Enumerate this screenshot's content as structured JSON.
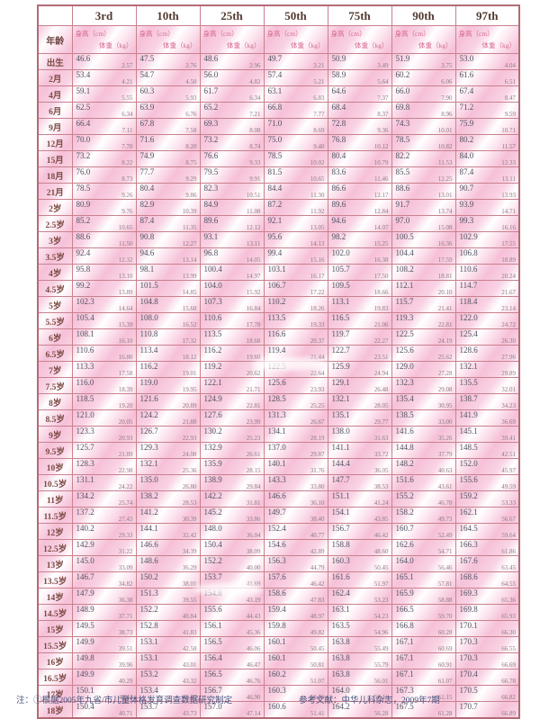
{
  "table": {
    "corner_label": "年龄",
    "percentiles": [
      "3rd",
      "10th",
      "25th",
      "50th",
      "75th",
      "90th",
      "97th"
    ],
    "subheader": {
      "height_label": "身高（cm）",
      "weight_label": "体重（kg）"
    },
    "rows": [
      [
        "出生",
        "46.6",
        "2.57",
        "47.5",
        "2.76",
        "48.6",
        "2.96",
        "49.7",
        "3.21",
        "50.9",
        "3.49",
        "51.9",
        "3.75",
        "53.0",
        "4.04"
      ],
      [
        "2月",
        "53.4",
        "4.21",
        "54.7",
        "4.50",
        "56.0",
        "4.82",
        "57.4",
        "5.21",
        "58.9",
        "5.64",
        "60.2",
        "6.06",
        "61.6",
        "6.51"
      ],
      [
        "4月",
        "59.1",
        "5.55",
        "60.3",
        "5.93",
        "61.7",
        "6.34",
        "63.1",
        "6.83",
        "64.6",
        "7.37",
        "66.0",
        "7.90",
        "67.4",
        "8.47"
      ],
      [
        "6月",
        "62.5",
        "6.34",
        "63.9",
        "6.76",
        "65.2",
        "7.21",
        "66.8",
        "7.77",
        "68.4",
        "8.37",
        "69.8",
        "8.96",
        "71.2",
        "9.59"
      ],
      [
        "9月",
        "66.4",
        "7.11",
        "67.8",
        "7.58",
        "69.3",
        "8.08",
        "71.0",
        "8.69",
        "72.8",
        "9.36",
        "74.3",
        "10.01",
        "75.9",
        "10.71"
      ],
      [
        "12月",
        "70.0",
        "7.70",
        "71.6",
        "8.20",
        "73.2",
        "8.74",
        "75.0",
        "9.40",
        "76.8",
        "10.12",
        "78.5",
        "10.82",
        "80.2",
        "11.57"
      ],
      [
        "15月",
        "73.2",
        "8.22",
        "74.9",
        "8.75",
        "76.6",
        "9.33",
        "78.5",
        "10.02",
        "80.4",
        "10.79",
        "82.2",
        "11.53",
        "84.0",
        "12.33"
      ],
      [
        "18月",
        "76.0",
        "8.73",
        "77.7",
        "9.29",
        "79.5",
        "9.91",
        "81.5",
        "10.65",
        "83.6",
        "11.46",
        "85.5",
        "12.25",
        "87.4",
        "13.11"
      ],
      [
        "21月",
        "78.5",
        "9.26",
        "80.4",
        "9.86",
        "82.3",
        "10.51",
        "84.4",
        "11.30",
        "86.6",
        "12.17",
        "88.6",
        "13.01",
        "90.7",
        "13.93"
      ],
      [
        "2岁",
        "80.9",
        "9.76",
        "82.9",
        "10.39",
        "84.9",
        "11.08",
        "87.2",
        "11.92",
        "89.6",
        "12.84",
        "91.7",
        "13.74",
        "93.9",
        "14.71"
      ],
      [
        "2.5岁",
        "85.2",
        "10.65",
        "87.4",
        "11.35",
        "89.6",
        "12.12",
        "92.1",
        "13.05",
        "94.6",
        "14.07",
        "97.0",
        "15.08",
        "99.3",
        "16.16"
      ],
      [
        "3岁",
        "88.6",
        "11.50",
        "90.8",
        "12.27",
        "93.1",
        "13.11",
        "95.6",
        "14.13",
        "98.2",
        "15.25",
        "100.5",
        "16.36",
        "102.9",
        "17.55"
      ],
      [
        "3.5岁",
        "92.4",
        "12.32",
        "94.6",
        "13.14",
        "96.8",
        "14.05",
        "99.4",
        "15.16",
        "102.0",
        "16.38",
        "104.4",
        "17.59",
        "106.8",
        "18.89"
      ],
      [
        "4岁",
        "95.8",
        "13.10",
        "98.1",
        "13.99",
        "100.4",
        "14.97",
        "103.1",
        "16.17",
        "105.7",
        "17.50",
        "108.2",
        "18.81",
        "110.6",
        "20.24"
      ],
      [
        "4.5岁",
        "99.2",
        "13.89",
        "101.5",
        "14.85",
        "104.0",
        "15.92",
        "106.7",
        "17.22",
        "109.5",
        "18.66",
        "112.1",
        "20.10",
        "114.7",
        "21.67"
      ],
      [
        "5岁",
        "102.3",
        "14.64",
        "104.8",
        "15.68",
        "107.3",
        "16.84",
        "110.2",
        "18.26",
        "113.1",
        "19.83",
        "115.7",
        "21.41",
        "118.4",
        "23.14"
      ],
      [
        "5.5岁",
        "105.4",
        "15.39",
        "108.0",
        "16.52",
        "110.6",
        "17.78",
        "113.5",
        "19.33",
        "116.5",
        "21.06",
        "119.3",
        "22.81",
        "122.0",
        "24.72"
      ],
      [
        "6岁",
        "108.1",
        "16.10",
        "110.8",
        "17.32",
        "113.5",
        "18.68",
        "116.6",
        "20.37",
        "119.7",
        "22.27",
        "122.5",
        "24.19",
        "125.4",
        "26.30"
      ],
      [
        "6.5岁",
        "110.6",
        "16.80",
        "113.4",
        "18.12",
        "116.2",
        "19.60",
        "119.4",
        "21.44",
        "122.7",
        "23.51",
        "125.6",
        "25.62",
        "128.6",
        "27.96"
      ],
      [
        "7岁",
        "113.3",
        "17.58",
        "116.2",
        "19.01",
        "119.2",
        "20.62",
        "122.5",
        "22.64",
        "125.9",
        "24.94",
        "129.0",
        "27.28",
        "132.1",
        "29.89"
      ],
      [
        "7.5岁",
        "116.0",
        "18.39",
        "119.0",
        "19.95",
        "122.1",
        "21.71",
        "125.6",
        "23.93",
        "129.1",
        "26.48",
        "132.3",
        "29.08",
        "135.5",
        "32.01"
      ],
      [
        "8岁",
        "118.5",
        "19.20",
        "121.6",
        "20.89",
        "124.9",
        "22.81",
        "128.5",
        "25.25",
        "132.1",
        "28.05",
        "135.4",
        "30.95",
        "138.7",
        "34.23"
      ],
      [
        "8.5岁",
        "121.0",
        "20.05",
        "124.2",
        "21.88",
        "127.6",
        "23.99",
        "131.3",
        "26.67",
        "135.1",
        "29.77",
        "138.5",
        "33.00",
        "141.9",
        "36.69"
      ],
      [
        "9岁",
        "123.3",
        "20.93",
        "126.7",
        "22.93",
        "130.2",
        "25.23",
        "134.1",
        "28.19",
        "138.0",
        "31.63",
        "141.6",
        "35.26",
        "145.1",
        "39.41"
      ],
      [
        "9.5岁",
        "125.7",
        "21.89",
        "129.3",
        "24.08",
        "132.9",
        "26.61",
        "137.0",
        "29.87",
        "141.1",
        "33.72",
        "144.8",
        "37.79",
        "148.5",
        "42.51"
      ],
      [
        "10岁",
        "128.3",
        "22.98",
        "132.1",
        "25.36",
        "135.9",
        "28.15",
        "140.1",
        "31.76",
        "144.4",
        "36.05",
        "148.2",
        "40.63",
        "152.0",
        "45.97"
      ],
      [
        "10.5岁",
        "131.1",
        "24.22",
        "135.0",
        "26.80",
        "138.9",
        "29.84",
        "143.3",
        "33.80",
        "147.7",
        "38.53",
        "151.6",
        "43.61",
        "155.6",
        "49.59"
      ],
      [
        "11岁",
        "134.2",
        "25.74",
        "138.2",
        "28.53",
        "142.2",
        "31.81",
        "146.6",
        "36.10",
        "151.1",
        "41.24",
        "155.2",
        "46.78",
        "159.2",
        "53.33"
      ],
      [
        "11.5岁",
        "137.2",
        "27.43",
        "141.2",
        "30.39",
        "145.2",
        "33.86",
        "149.7",
        "38.40",
        "154.1",
        "43.85",
        "158.2",
        "49.73",
        "162.1",
        "56.67"
      ],
      [
        "12岁",
        "140.2",
        "29.33",
        "144.1",
        "32.42",
        "148.0",
        "36.04",
        "152.4",
        "40.77",
        "156.7",
        "46.42",
        "160.7",
        "52.49",
        "164.5",
        "59.64"
      ],
      [
        "12.5岁",
        "142.9",
        "31.22",
        "146.6",
        "34.39",
        "150.4",
        "38.09",
        "154.6",
        "42.89",
        "158.8",
        "48.60",
        "162.6",
        "54.71",
        "166.3",
        "61.86"
      ],
      [
        "13岁",
        "145.0",
        "33.09",
        "148.6",
        "36.29",
        "152.2",
        "40.00",
        "156.3",
        "44.79",
        "160.3",
        "50.45",
        "164.0",
        "56.46",
        "167.6",
        "63.45"
      ],
      [
        "13.5岁",
        "146.7",
        "34.82",
        "150.2",
        "38.01",
        "153.7",
        "41.69",
        "157.6",
        "46.42",
        "161.6",
        "51.97",
        "165.1",
        "57.81",
        "168.6",
        "64.55"
      ],
      [
        "14岁",
        "147.9",
        "36.38",
        "151.3",
        "39.55",
        "154.8",
        "43.19",
        "158.6",
        "47.83",
        "162.4",
        "53.23",
        "165.9",
        "58.88",
        "169.3",
        "65.36"
      ],
      [
        "14.5岁",
        "148.9",
        "37.71",
        "152.2",
        "40.84",
        "155.6",
        "44.43",
        "159.4",
        "48.97",
        "163.1",
        "54.23",
        "166.5",
        "59.70",
        "169.8",
        "65.93"
      ],
      [
        "15岁",
        "149.5",
        "38.73",
        "152.8",
        "41.83",
        "156.1",
        "45.36",
        "159.8",
        "49.82",
        "163.5",
        "54.96",
        "166.8",
        "60.28",
        "170.1",
        "66.30"
      ],
      [
        "15.5岁",
        "149.9",
        "39.51",
        "153.1",
        "42.58",
        "156.5",
        "46.06",
        "160.1",
        "50.45",
        "163.8",
        "55.49",
        "167.1",
        "60.69",
        "170.3",
        "66.55"
      ],
      [
        "16岁",
        "149.8",
        "39.96",
        "153.1",
        "43.01",
        "156.4",
        "46.47",
        "160.1",
        "50.81",
        "163.8",
        "55.79",
        "167.1",
        "60.91",
        "170.3",
        "66.69"
      ],
      [
        "16.5岁",
        "149.9",
        "40.29",
        "153.2",
        "43.32",
        "156.5",
        "46.76",
        "160.2",
        "51.07",
        "163.8",
        "56.01",
        "167.1",
        "61.07",
        "170.4",
        "66.78"
      ],
      [
        "17岁",
        "150.1",
        "40.44",
        "153.4",
        "43.47",
        "156.7",
        "46.90",
        "160.3",
        "51.20",
        "164.0",
        "56.11",
        "167.3",
        "61.15",
        "170.5",
        "66.82"
      ],
      [
        "18岁",
        "150.4",
        "40.71",
        "153.7",
        "43.73",
        "157.0",
        "47.14",
        "160.6",
        "51.41",
        "164.2",
        "56.28",
        "167.5",
        "61.28",
        "170.7",
        "66.89"
      ]
    ]
  },
  "footer": {
    "note": "注：①根据2005年九省/市儿童体格发育调查数据研究制定",
    "reference": "参考文献：中华儿科杂志，2009年7期"
  },
  "colors": {
    "border": "#b26b77",
    "stripe_pink": "#f6c0d8",
    "header_text": "#54392f",
    "subheader_text": "#d6688f",
    "age_text": "#7c4a44",
    "height_text": "#4e5361",
    "weight_text": "#8e7b80",
    "footnote_text": "#45517c"
  }
}
